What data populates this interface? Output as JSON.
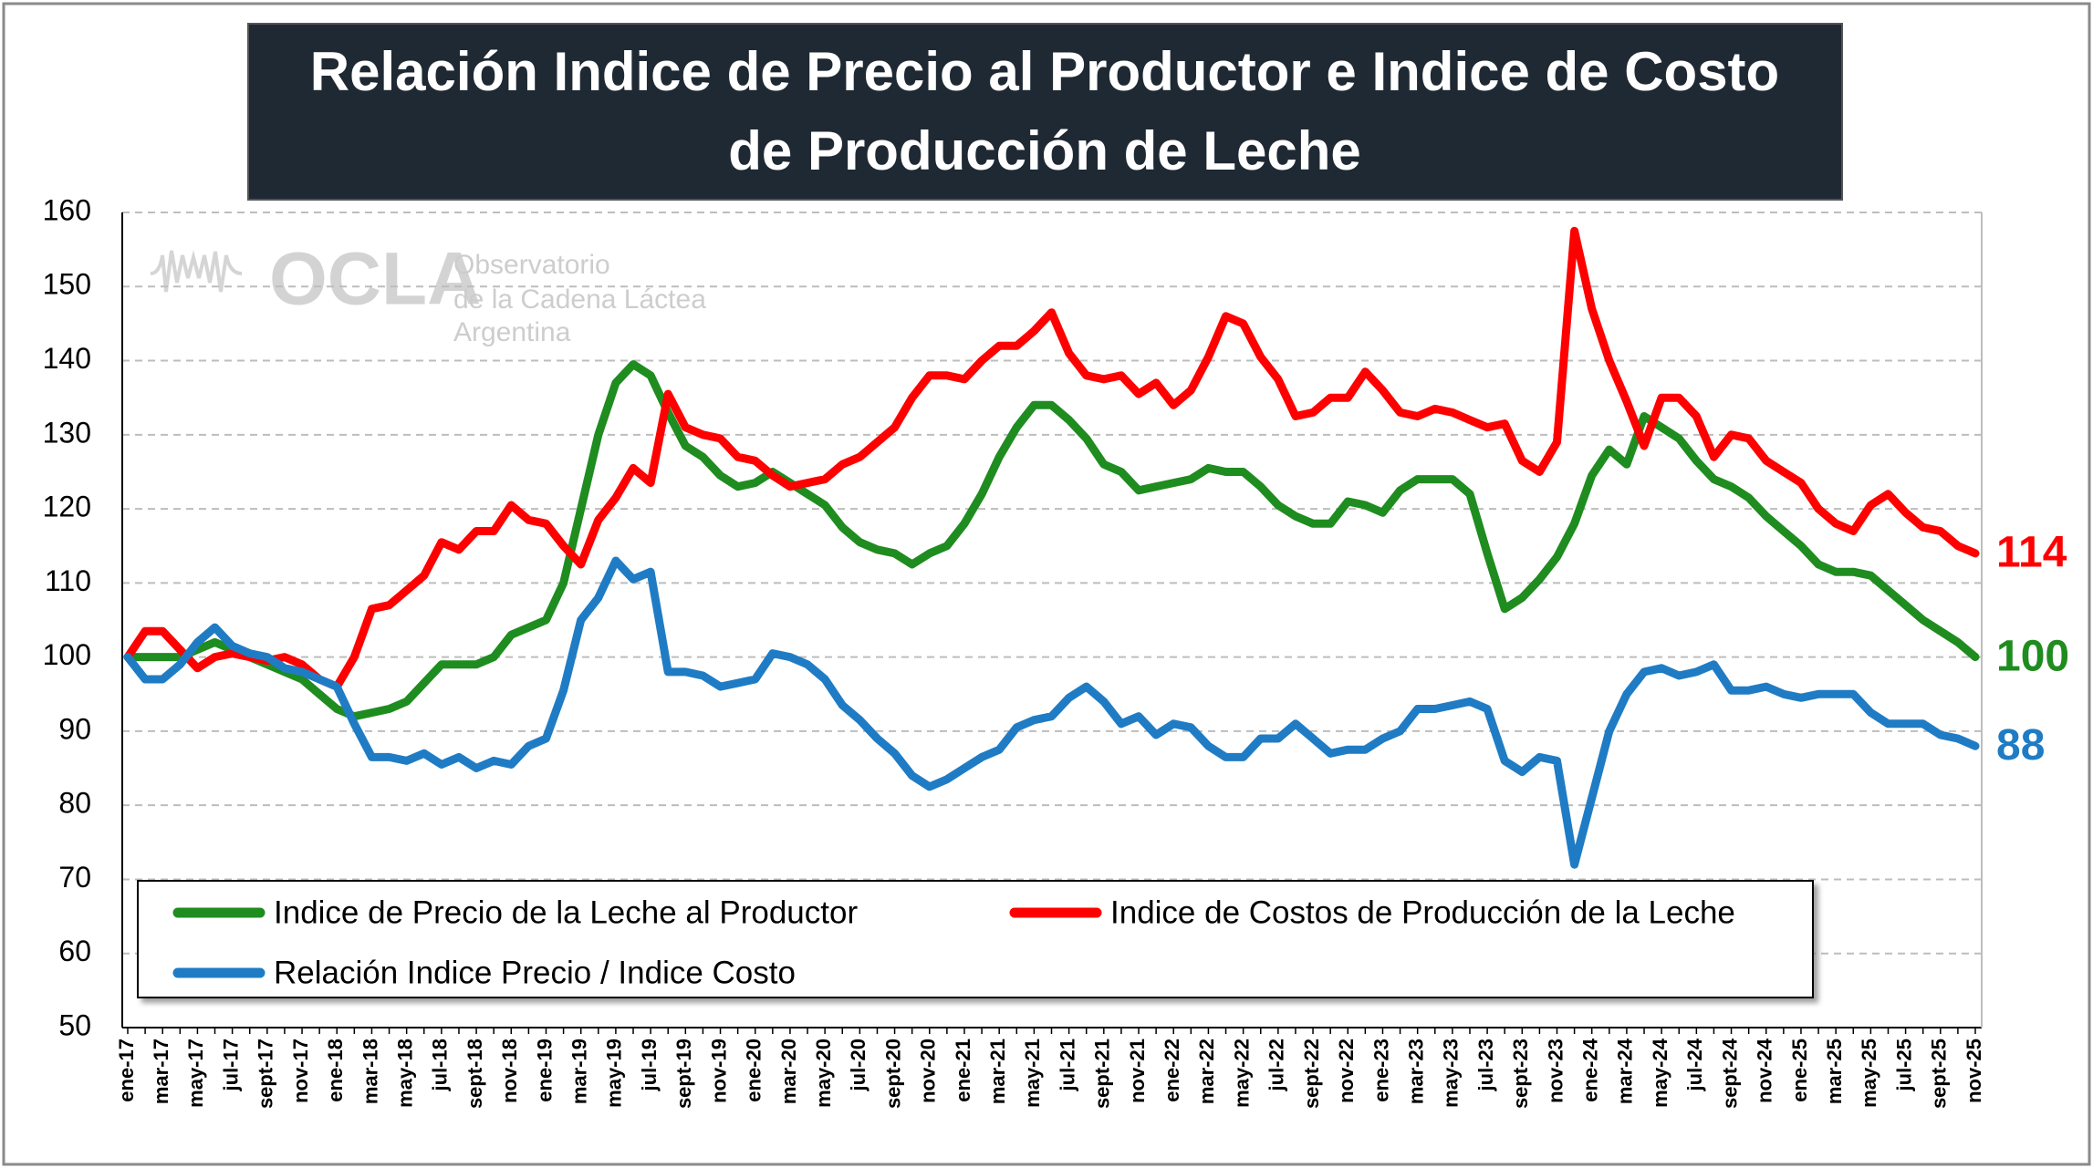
{
  "chart_data": {
    "type": "line",
    "title": [
      "Relación Indice de Precio al Productor e Indice de Costo",
      "de Producción de Leche"
    ],
    "watermark": {
      "logo": "OCLA",
      "lines": [
        "Observatorio",
        "de la Cadena Láctea",
        "Argentina"
      ]
    },
    "categories": [
      "ene-17",
      null,
      "mar-17",
      null,
      "may-17",
      null,
      "jul-17",
      null,
      "sept-17",
      null,
      "nov-17",
      null,
      "ene-18",
      null,
      "mar-18",
      null,
      "may-18",
      null,
      "jul-18",
      null,
      "sept-18",
      null,
      "nov-18",
      null,
      "ene-19",
      null,
      "mar-19",
      null,
      "may-19",
      null,
      "jul-19",
      null,
      "sept-19",
      null,
      "nov-19",
      null,
      "ene-20",
      null,
      "mar-20",
      null,
      "may-20",
      null,
      "jul-20",
      null,
      "sept-20",
      null,
      "nov-20",
      null,
      "ene-21",
      null,
      "mar-21",
      null,
      "may-21",
      null,
      "jul-21",
      null,
      "sept-21",
      null,
      "nov-21",
      null,
      "ene-22",
      null,
      "mar-22",
      null,
      "may-22",
      null,
      "jul-22",
      null,
      "sept-22",
      null,
      "nov-22",
      null,
      "ene-23",
      null,
      "mar-23",
      null,
      "may-23",
      null,
      "jul-23",
      null,
      "sept-23",
      null,
      "nov-23",
      null,
      "ene-24",
      null,
      "mar-24",
      null,
      "may-24",
      null,
      "jul-24",
      null,
      "sept-24",
      null,
      "nov-24",
      null,
      "ene-25",
      null,
      "mar-25",
      null,
      "may-25",
      null,
      "jul-25",
      null,
      "sept-25",
      null,
      "nov-25"
    ],
    "series": [
      {
        "name": "Indice de Precio de la Leche al Productor",
        "color": "#1f8c1f",
        "values": [
          100,
          100,
          100,
          100,
          101,
          102,
          101,
          100,
          99,
          98,
          97,
          95,
          93,
          92,
          92.5,
          93,
          94,
          96.5,
          99,
          99,
          99,
          100,
          103,
          104,
          105,
          110,
          120,
          130,
          137,
          139.5,
          138,
          133,
          128.5,
          127,
          124.5,
          123,
          123.5,
          125,
          123.5,
          122,
          120.5,
          117.5,
          115.5,
          114.5,
          114,
          112.5,
          114,
          115,
          118,
          122,
          127,
          131,
          134,
          134,
          132,
          129.5,
          126,
          125,
          122.5,
          123,
          123.5,
          124,
          125.5,
          125,
          125,
          123,
          120.5,
          119,
          118,
          118,
          121,
          120.5,
          119.5,
          122.5,
          124,
          124,
          124,
          122,
          114,
          106.5,
          108,
          110.5,
          113.5,
          118,
          124.5,
          128,
          126,
          132.5,
          131,
          129.5,
          126.5,
          124,
          123,
          121.5,
          119,
          117,
          115,
          112.5,
          111.5,
          111.5,
          111,
          109,
          107,
          105,
          103.5,
          102,
          100
        ]
      },
      {
        "name": "Indice de Costos de Producción de la Leche",
        "color": "#ff0000",
        "values": [
          100,
          103.5,
          103.5,
          101,
          98.5,
          100,
          100.5,
          100,
          99.5,
          100,
          99,
          97,
          96,
          100,
          106.5,
          107,
          109,
          111,
          115.5,
          114.5,
          117,
          117,
          120.5,
          118.5,
          118,
          115,
          112.5,
          118.5,
          121.5,
          125.5,
          123.5,
          135.5,
          131,
          130,
          129.5,
          127,
          126.5,
          124.5,
          123,
          123.5,
          124,
          126,
          127,
          129,
          131,
          135,
          138,
          138,
          137.5,
          140,
          142,
          142,
          144,
          146.5,
          141,
          138,
          137.5,
          138,
          135.5,
          137,
          134,
          136,
          140.5,
          146,
          145,
          140.5,
          137.5,
          132.5,
          133,
          135,
          135,
          138.5,
          136,
          133,
          132.5,
          133.5,
          133,
          132,
          131,
          131.5,
          126.5,
          125,
          129,
          157.5,
          147,
          140,
          134.5,
          128.5,
          135,
          135,
          132.5,
          127,
          130,
          129.5,
          126.5,
          125,
          123.5,
          120,
          118,
          117,
          120.5,
          122,
          119.5,
          117.5,
          117,
          115,
          114
        ]
      },
      {
        "name": "Relación Indice Precio / Indice Costo",
        "color": "#1f7cc4",
        "values": [
          100,
          97,
          97,
          99,
          102,
          104,
          101.5,
          100.5,
          100,
          98.5,
          98,
          97,
          96,
          91,
          86.5,
          86.5,
          86,
          87,
          85.5,
          86.5,
          85,
          86,
          85.5,
          88,
          89,
          95.5,
          105,
          108,
          113,
          110.5,
          111.5,
          98,
          98,
          97.5,
          96,
          96.5,
          97,
          100.5,
          100,
          99,
          97,
          93.5,
          91.5,
          89,
          87,
          84,
          82.5,
          83.5,
          85,
          86.5,
          87.5,
          90.5,
          91.5,
          92,
          94.5,
          96,
          94,
          91,
          92,
          89.5,
          91,
          90.5,
          88,
          86.5,
          86.5,
          89,
          89,
          91,
          89,
          87,
          87.5,
          87.5,
          89,
          90,
          93,
          93,
          93.5,
          94,
          93,
          86,
          84.5,
          86.5,
          86,
          72,
          81,
          90,
          95,
          98,
          98.5,
          97.5,
          98,
          99,
          95.5,
          95.5,
          96,
          95,
          94.5,
          95,
          95,
          95,
          92.5,
          91,
          91,
          91,
          89.5,
          89,
          88
        ]
      }
    ],
    "ylim": [
      50,
      160
    ],
    "yticks": [
      50,
      60,
      70,
      80,
      90,
      100,
      110,
      120,
      130,
      140,
      150,
      160
    ],
    "grid": true,
    "legend": "lower-left",
    "end_labels": true
  }
}
